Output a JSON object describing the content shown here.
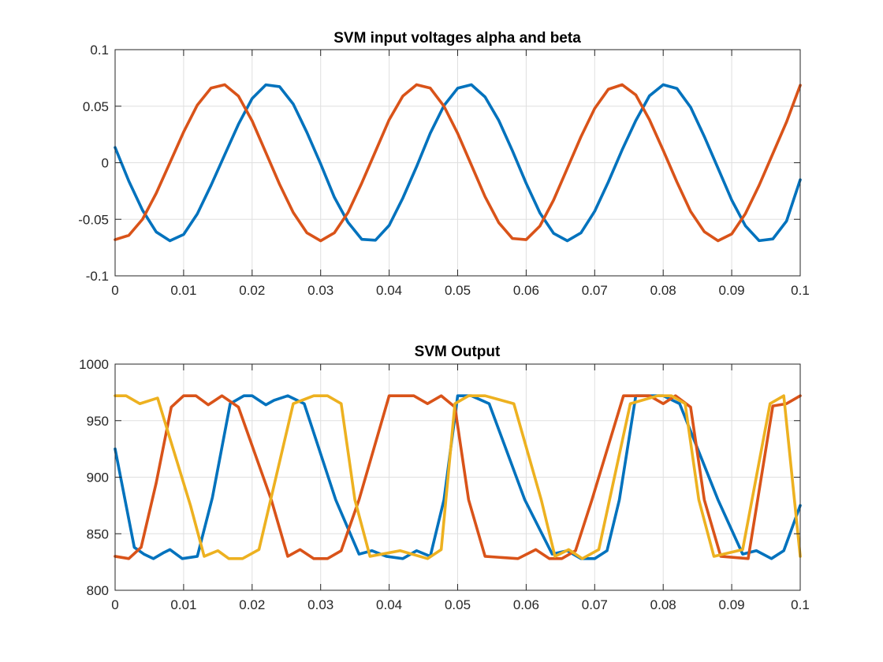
{
  "chart_data": [
    {
      "type": "line",
      "title": "SVM input voltages alpha and beta",
      "xlabel": "",
      "ylabel": "",
      "xlim": [
        0,
        0.1
      ],
      "ylim": [
        -0.1,
        0.1
      ],
      "x_ticks": [
        0,
        0.01,
        0.02,
        0.03,
        0.04,
        0.05,
        0.06,
        0.07,
        0.08,
        0.09,
        0.1
      ],
      "x_tick_labels": [
        "0",
        "0.01",
        "0.02",
        "0.03",
        "0.04",
        "0.05",
        "0.06",
        "0.07",
        "0.08",
        "0.09",
        "0.1"
      ],
      "y_ticks": [
        -0.1,
        -0.05,
        0,
        0.05,
        0.1
      ],
      "y_tick_labels": [
        "-0.1",
        "-0.05",
        "0",
        "0.05",
        "0.1"
      ],
      "grid": true,
      "legend": "none",
      "series": [
        {
          "color": "#0072BD",
          "x": [
            0,
            0.002,
            0.004,
            0.006,
            0.008,
            0.01,
            0.012,
            0.014,
            0.016,
            0.018,
            0.02,
            0.022,
            0.024,
            0.026,
            0.028,
            0.03,
            0.032,
            0.034,
            0.036,
            0.038,
            0.04,
            0.042,
            0.044,
            0.046,
            0.048,
            0.05,
            0.052,
            0.054,
            0.056,
            0.058,
            0.06,
            0.062,
            0.064,
            0.066,
            0.068,
            0.07,
            0.072,
            0.074,
            0.076,
            0.078,
            0.08,
            0.082,
            0.084,
            0.086,
            0.088,
            0.09,
            0.092,
            0.094,
            0.096,
            0.098,
            0.1
          ],
          "y": [
            0.0135,
            -0.0162,
            -0.042,
            -0.0612,
            -0.069,
            -0.0634,
            -0.0452,
            -0.02,
            0.0071,
            0.034,
            0.0568,
            0.0689,
            0.0673,
            0.0519,
            0.0268,
            -0.001,
            -0.0305,
            -0.0527,
            -0.0677,
            -0.0685,
            -0.0554,
            -0.0312,
            -0.0035,
            0.0261,
            0.0505,
            0.0659,
            0.069,
            0.0582,
            0.0374,
            0.0105,
            -0.0182,
            -0.0443,
            -0.0624,
            -0.069,
            -0.062,
            -0.0429,
            -0.0169,
            0.0113,
            0.0373,
            0.0592,
            0.069,
            0.0657,
            0.0491,
            0.0232,
            -0.0048,
            -0.033,
            -0.0558,
            -0.0689,
            -0.0674,
            -0.0516,
            -0.015
          ]
        },
        {
          "color": "#D95319",
          "x": [
            0,
            0.002,
            0.004,
            0.006,
            0.008,
            0.01,
            0.012,
            0.014,
            0.016,
            0.018,
            0.02,
            0.022,
            0.024,
            0.026,
            0.028,
            0.03,
            0.032,
            0.034,
            0.036,
            0.038,
            0.04,
            0.042,
            0.044,
            0.046,
            0.048,
            0.05,
            0.052,
            0.054,
            0.056,
            0.058,
            0.06,
            0.062,
            0.064,
            0.066,
            0.068,
            0.07,
            0.072,
            0.074,
            0.076,
            0.078,
            0.08,
            0.082,
            0.084,
            0.086,
            0.088,
            0.09,
            0.092,
            0.094,
            0.096,
            0.098,
            0.1
          ],
          "y": [
            -0.068,
            -0.0642,
            -0.05,
            -0.027,
            0.0,
            0.0272,
            0.051,
            0.066,
            0.069,
            0.059,
            0.037,
            0.009,
            -0.019,
            -0.044,
            -0.062,
            -0.069,
            -0.062,
            -0.044,
            -0.018,
            0.01,
            0.038,
            0.059,
            0.069,
            0.066,
            0.05,
            0.026,
            -0.002,
            -0.03,
            -0.053,
            -0.067,
            -0.068,
            -0.056,
            -0.033,
            -0.005,
            0.023,
            0.048,
            0.065,
            0.069,
            0.06,
            0.038,
            0.011,
            -0.017,
            -0.043,
            -0.061,
            -0.069,
            -0.063,
            -0.045,
            -0.02,
            0.008,
            0.036,
            0.0685
          ]
        }
      ]
    },
    {
      "type": "line",
      "title": "SVM Output",
      "xlabel": "",
      "ylabel": "",
      "xlim": [
        0,
        0.1
      ],
      "ylim": [
        800,
        1000
      ],
      "x_ticks": [
        0,
        0.01,
        0.02,
        0.03,
        0.04,
        0.05,
        0.06,
        0.07,
        0.08,
        0.09,
        0.1
      ],
      "x_tick_labels": [
        "0",
        "0.01",
        "0.02",
        "0.03",
        "0.04",
        "0.05",
        "0.06",
        "0.07",
        "0.08",
        "0.09",
        "0.1"
      ],
      "y_ticks": [
        800,
        850,
        900,
        950,
        1000
      ],
      "y_tick_labels": [
        "800",
        "850",
        "900",
        "950",
        "1000"
      ],
      "grid": true,
      "legend": "none",
      "series": [
        {
          "color": "#0072BD",
          "x": [
            0,
            0.0028,
            0.0042,
            0.0056,
            0.007,
            0.008,
            0.0098,
            0.012,
            0.0142,
            0.0168,
            0.0188,
            0.02,
            0.022,
            0.0232,
            0.0252,
            0.0276,
            0.0322,
            0.0356,
            0.0375,
            0.0396,
            0.042,
            0.044,
            0.046,
            0.048,
            0.05,
            0.052,
            0.0546,
            0.0598,
            0.0638,
            0.066,
            0.068,
            0.07,
            0.0718,
            0.0736,
            0.076,
            0.078,
            0.08,
            0.0824,
            0.088,
            0.0916,
            0.0936,
            0.0958,
            0.0976,
            0.1
          ],
          "y": [
            925,
            838,
            832,
            828,
            833,
            836,
            828,
            830,
            882,
            965,
            972,
            972,
            964,
            968,
            972,
            965,
            880,
            832,
            835,
            830,
            828,
            835,
            830,
            880,
            972,
            972,
            965,
            880,
            832,
            835,
            828,
            828,
            835,
            880,
            972,
            972,
            972,
            965,
            880,
            832,
            835,
            828,
            835,
            875
          ]
        },
        {
          "color": "#D95319",
          "x": [
            0,
            0.002,
            0.0038,
            0.006,
            0.0082,
            0.01,
            0.0118,
            0.0136,
            0.0156,
            0.018,
            0.0228,
            0.0252,
            0.027,
            0.029,
            0.031,
            0.033,
            0.0356,
            0.04,
            0.0436,
            0.0456,
            0.0476,
            0.0496,
            0.0516,
            0.054,
            0.0588,
            0.0614,
            0.0634,
            0.0652,
            0.0672,
            0.0696,
            0.0742,
            0.078,
            0.08,
            0.0818,
            0.084,
            0.086,
            0.0884,
            0.0924,
            0.096,
            0.098,
            0.1
          ],
          "y": [
            830,
            828,
            838,
            895,
            962,
            972,
            972,
            964,
            972,
            962,
            880,
            830,
            836,
            828,
            828,
            835,
            880,
            972,
            972,
            965,
            972,
            962,
            880,
            830,
            828,
            836,
            828,
            828,
            835,
            880,
            972,
            972,
            965,
            972,
            962,
            880,
            830,
            828,
            963,
            965,
            972
          ]
        },
        {
          "color": "#EDB120",
          "x": [
            0,
            0.0016,
            0.0036,
            0.0062,
            0.011,
            0.013,
            0.015,
            0.0166,
            0.0186,
            0.021,
            0.026,
            0.029,
            0.031,
            0.033,
            0.035,
            0.0372,
            0.0416,
            0.0456,
            0.0476,
            0.0496,
            0.0516,
            0.054,
            0.0582,
            0.0622,
            0.0642,
            0.0662,
            0.0682,
            0.0706,
            0.0752,
            0.0792,
            0.0812,
            0.0832,
            0.0852,
            0.0874,
            0.0916,
            0.0956,
            0.0976,
            0.1
          ],
          "y": [
            972,
            972,
            965,
            970,
            875,
            830,
            835,
            828,
            828,
            836,
            965,
            972,
            972,
            965,
            880,
            830,
            835,
            828,
            836,
            965,
            972,
            972,
            965,
            880,
            830,
            836,
            828,
            836,
            965,
            972,
            972,
            965,
            880,
            830,
            836,
            965,
            972,
            830
          ]
        }
      ]
    }
  ]
}
